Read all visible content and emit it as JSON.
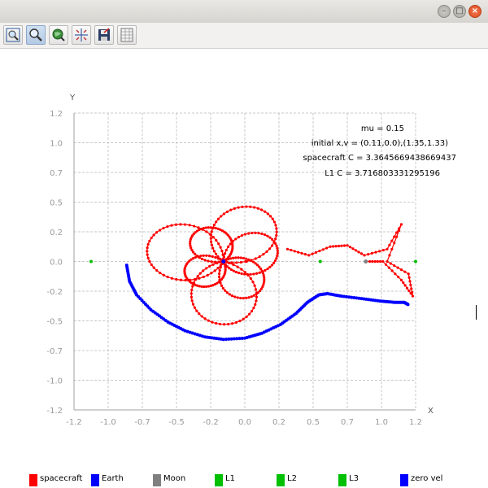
{
  "window": {
    "close_glyph": "×",
    "max_glyph": "□",
    "min_glyph": "–"
  },
  "toolbar": {
    "buttons": [
      {
        "name": "zoom-fit-button",
        "icon": "zoom-fit-icon",
        "active": false
      },
      {
        "name": "zoom-button",
        "icon": "magnifier-icon",
        "active": true
      },
      {
        "name": "pan-button",
        "icon": "globe-pan-icon",
        "active": false
      },
      {
        "name": "trace-button",
        "icon": "crosshair-icon",
        "active": false
      },
      {
        "name": "export-button",
        "icon": "save-export-icon",
        "active": false
      },
      {
        "name": "table-button",
        "icon": "table-icon",
        "active": false
      }
    ]
  },
  "colors": {
    "spacecraft": "#ff0000",
    "earth": "#0000ff",
    "moon": "#808080",
    "lagrange": "#00c000",
    "zero_vel": "#0000ff",
    "grid": "#c8c8c8",
    "axis": "#a0a0a0"
  },
  "chart_data": {
    "type": "scatter",
    "xlabel": "X",
    "ylabel": "Y",
    "xlim": [
      -1.2,
      1.2
    ],
    "ylim": [
      -1.2,
      1.2
    ],
    "xticks": [
      "-1.2",
      "-1.0",
      "-0.7",
      "-0.5",
      "-0.2",
      "0.0",
      "0.2",
      "0.5",
      "0.7",
      "1.0",
      "1.2"
    ],
    "yticks": [
      "1.2",
      "1.0",
      "0.7",
      "0.5",
      "0.2",
      "0.0",
      "-0.2",
      "-0.5",
      "-0.7",
      "-1.0",
      "-1.2"
    ],
    "grid": true,
    "annotations": [
      "mu = 0.15",
      "initial x,v = (0.11,0.0),(1.35,1.33)",
      "spacecraft C = 3.3645669438669437",
      "L1 C = 3.716803331295196"
    ],
    "legend_position": "bottom",
    "legend": [
      {
        "label": "spacecraft",
        "color": "#ff0000"
      },
      {
        "label": "Earth",
        "color": "#0000ff"
      },
      {
        "label": "Moon",
        "color": "#808080"
      },
      {
        "label": "L1",
        "color": "#00c000"
      },
      {
        "label": "L2",
        "color": "#00c000"
      },
      {
        "label": "L3",
        "color": "#00c000"
      },
      {
        "label": "zero vel",
        "color": "#0000ff"
      }
    ],
    "points": {
      "earth": [
        -0.15,
        0.0
      ],
      "moon": [
        0.85,
        0.0
      ],
      "L1": [
        0.53,
        0.0
      ],
      "L2": [
        1.2,
        0.0
      ],
      "L3": [
        -1.08,
        0.0
      ]
    },
    "zero_vel_curve": [
      [
        -0.83,
        -0.03
      ],
      [
        -0.81,
        -0.16
      ],
      [
        -0.76,
        -0.27
      ],
      [
        -0.66,
        -0.39
      ],
      [
        -0.54,
        -0.49
      ],
      [
        -0.42,
        -0.56
      ],
      [
        -0.28,
        -0.61
      ],
      [
        -0.15,
        -0.63
      ],
      [
        0.0,
        -0.62
      ],
      [
        0.12,
        -0.58
      ],
      [
        0.25,
        -0.51
      ],
      [
        0.36,
        -0.42
      ],
      [
        0.44,
        -0.33
      ],
      [
        0.52,
        -0.27
      ],
      [
        0.58,
        -0.26
      ],
      [
        0.68,
        -0.28
      ],
      [
        0.82,
        -0.3
      ],
      [
        0.95,
        -0.32
      ],
      [
        1.05,
        -0.33
      ],
      [
        1.12,
        -0.33
      ],
      [
        1.15,
        -0.35
      ]
    ],
    "spacecraft_orbit": {
      "center": [
        -0.15,
        0.0
      ],
      "loops": 14,
      "max_radius": 0.55,
      "tail": [
        [
          0.3,
          0.1
        ],
        [
          0.45,
          0.05
        ],
        [
          0.6,
          0.12
        ],
        [
          0.72,
          0.13
        ],
        [
          0.84,
          0.05
        ],
        [
          1.0,
          0.1
        ],
        [
          1.1,
          0.3
        ],
        [
          1.0,
          0.0
        ],
        [
          1.15,
          -0.1
        ],
        [
          1.18,
          -0.28
        ],
        [
          1.1,
          -0.15
        ],
        [
          0.97,
          0.0
        ],
        [
          0.86,
          0.0
        ]
      ]
    }
  }
}
